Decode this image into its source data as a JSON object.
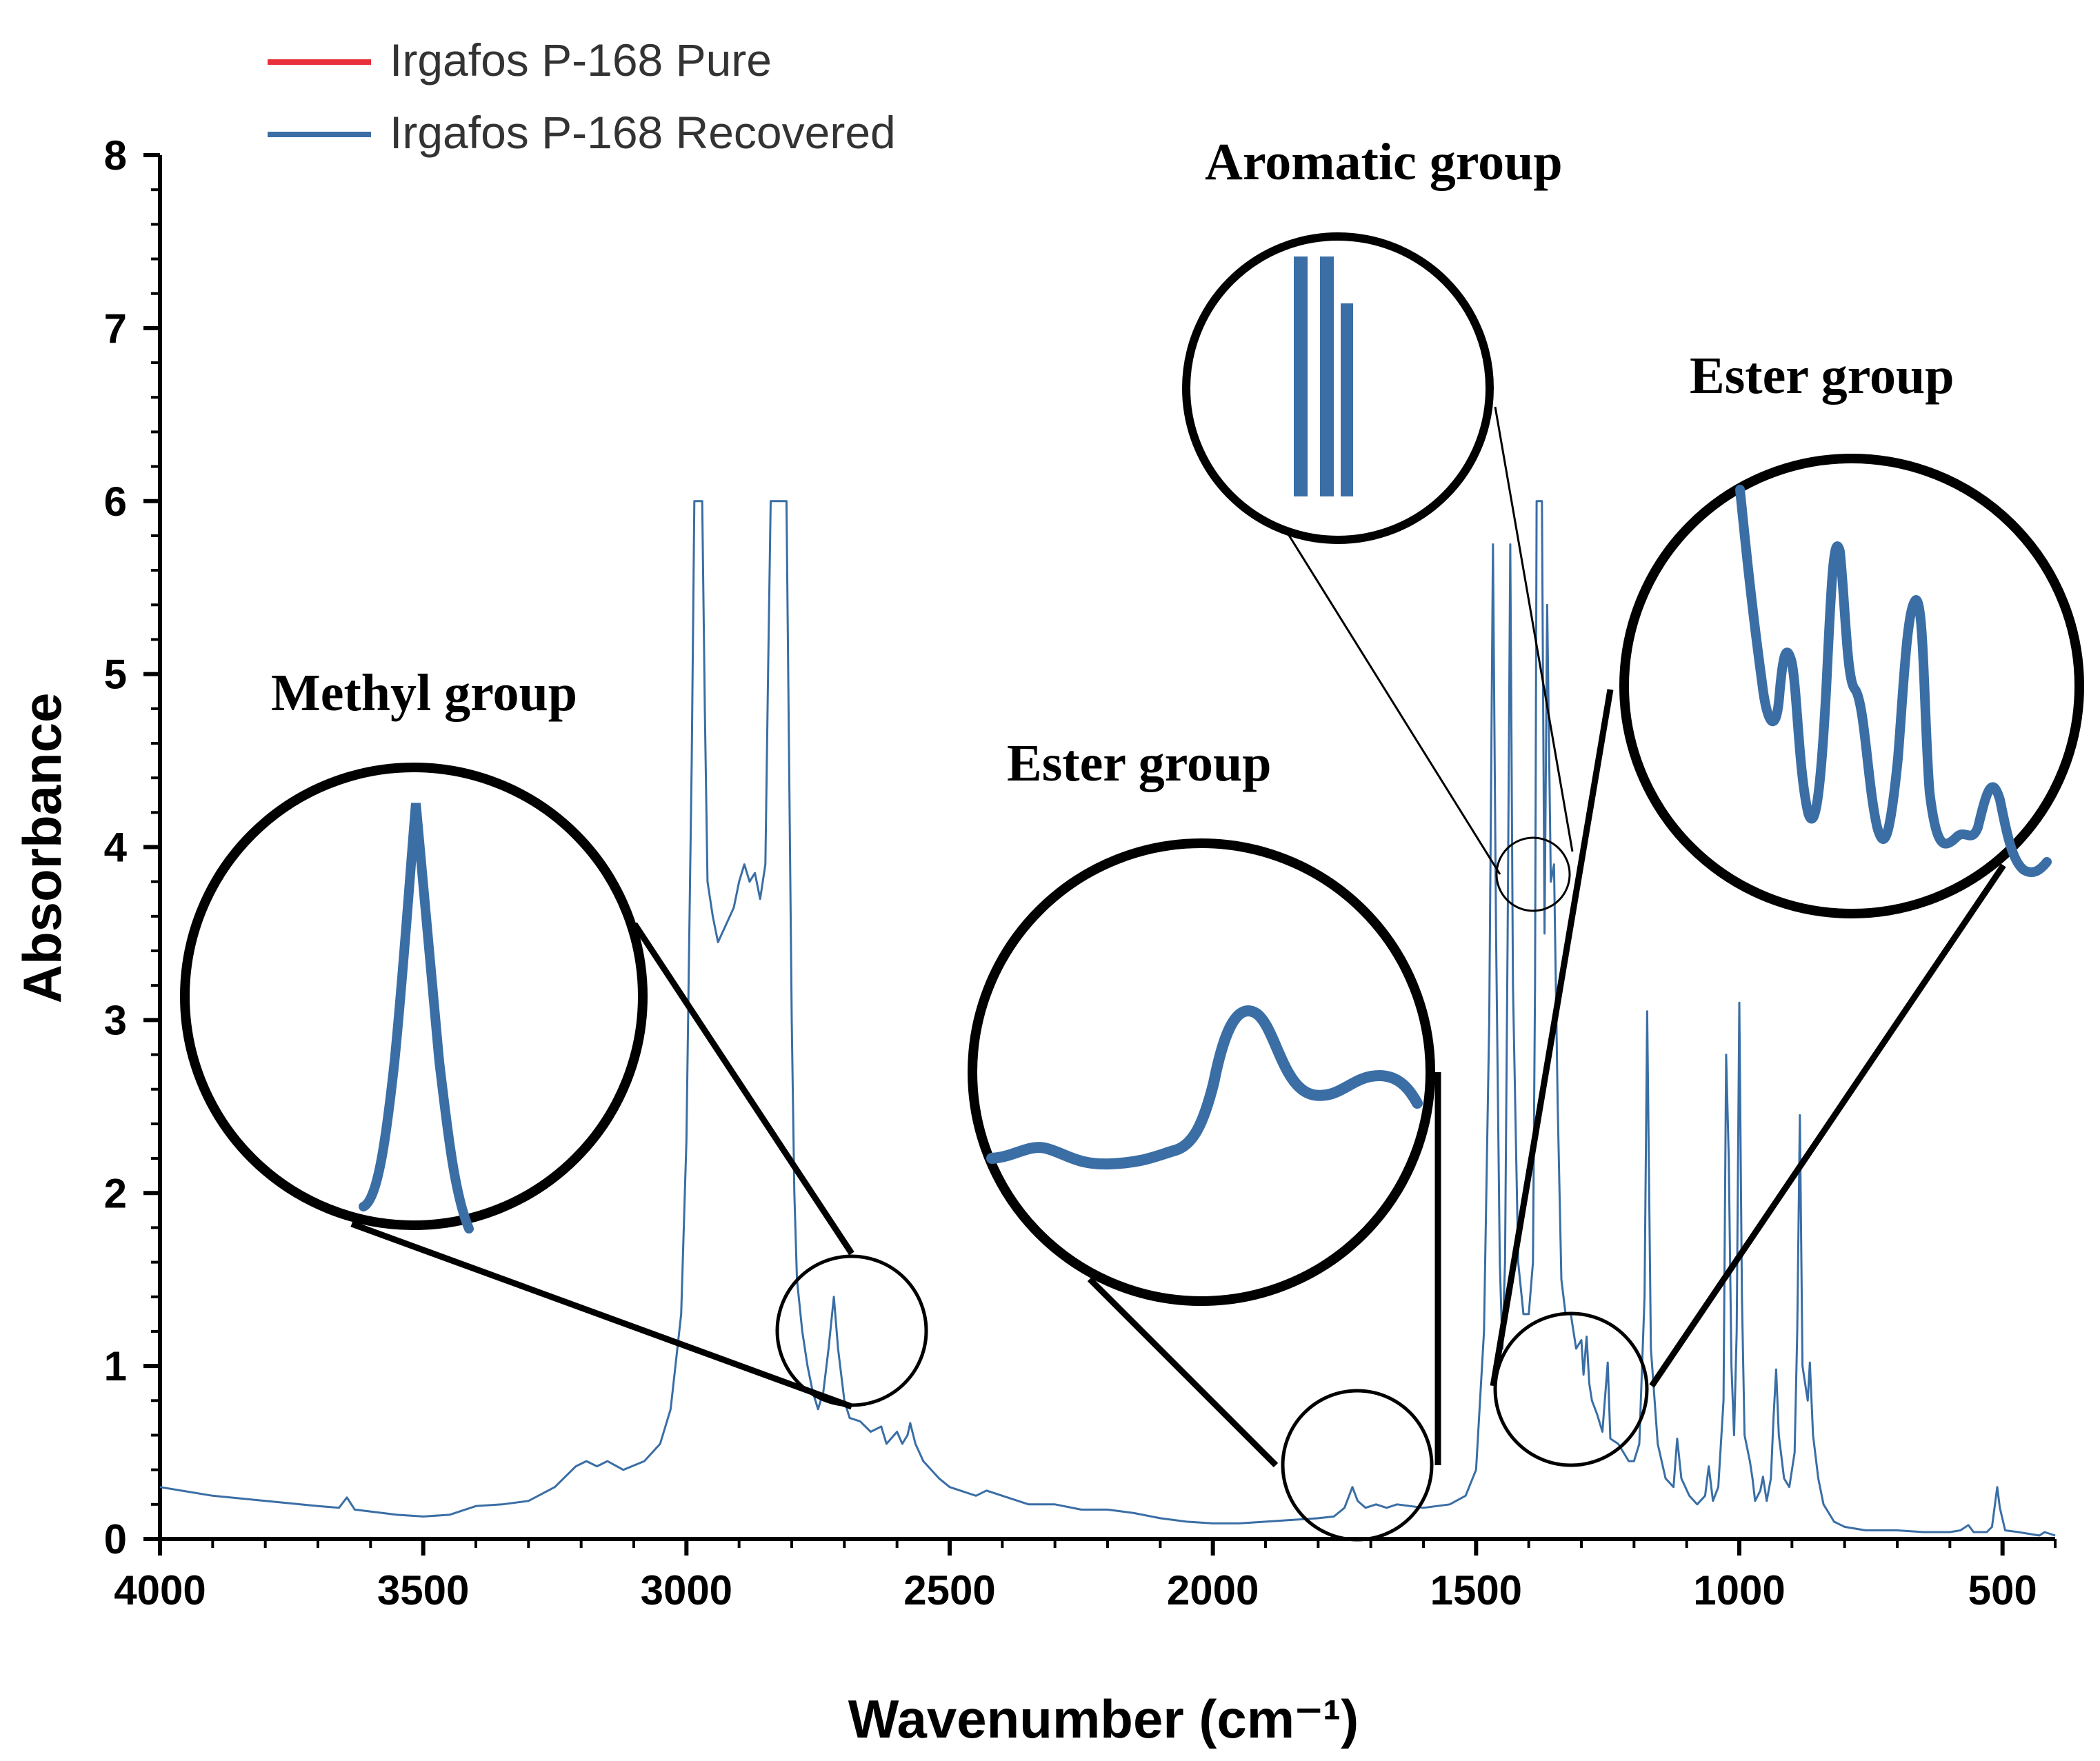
{
  "chart_data": {
    "type": "line",
    "title": "",
    "xlabel": "Wavenumber (cm⁻¹)",
    "ylabel": "Absorbance",
    "xlim": [
      4000,
      400
    ],
    "ylim": [
      0,
      8
    ],
    "x_ticks": [
      "4000",
      "3500",
      "3000",
      "2500",
      "2000",
      "1500",
      "1000",
      "500"
    ],
    "y_ticks": [
      "0",
      "1",
      "2",
      "3",
      "4",
      "5",
      "6",
      "7",
      "8"
    ],
    "legend": {
      "position": "top-left",
      "entries": [
        {
          "label": "Irgafos P-168 Pure",
          "color": "#e8303a"
        },
        {
          "label": "Irgafos P-168 Recovered",
          "color": "#3a6ea5"
        }
      ]
    },
    "series": [
      {
        "name": "Irgafos P-168 Recovered",
        "color": "#3a6ea5",
        "points": [
          [
            4000,
            0.3
          ],
          [
            3900,
            0.25
          ],
          [
            3800,
            0.22
          ],
          [
            3700,
            0.19
          ],
          [
            3660,
            0.18
          ],
          [
            3645,
            0.24
          ],
          [
            3630,
            0.17
          ],
          [
            3550,
            0.14
          ],
          [
            3500,
            0.13
          ],
          [
            3450,
            0.14
          ],
          [
            3400,
            0.19
          ],
          [
            3350,
            0.2
          ],
          [
            3300,
            0.22
          ],
          [
            3250,
            0.3
          ],
          [
            3210,
            0.42
          ],
          [
            3190,
            0.45
          ],
          [
            3170,
            0.42
          ],
          [
            3150,
            0.45
          ],
          [
            3120,
            0.4
          ],
          [
            3080,
            0.45
          ],
          [
            3050,
            0.55
          ],
          [
            3030,
            0.75
          ],
          [
            3010,
            1.3
          ],
          [
            3000,
            2.3
          ],
          [
            2990,
            4.5
          ],
          [
            2985,
            6.0
          ],
          [
            2970,
            6.0
          ],
          [
            2965,
            4.8
          ],
          [
            2960,
            3.8
          ],
          [
            2950,
            3.6
          ],
          [
            2940,
            3.45
          ],
          [
            2925,
            3.55
          ],
          [
            2910,
            3.65
          ],
          [
            2900,
            3.8
          ],
          [
            2890,
            3.9
          ],
          [
            2880,
            3.8
          ],
          [
            2870,
            3.85
          ],
          [
            2860,
            3.7
          ],
          [
            2850,
            3.9
          ],
          [
            2845,
            5.0
          ],
          [
            2840,
            6.0
          ],
          [
            2810,
            6.0
          ],
          [
            2805,
            4.5
          ],
          [
            2800,
            3.0
          ],
          [
            2795,
            2.0
          ],
          [
            2790,
            1.5
          ],
          [
            2780,
            1.2
          ],
          [
            2770,
            1.0
          ],
          [
            2760,
            0.85
          ],
          [
            2750,
            0.75
          ],
          [
            2740,
            0.85
          ],
          [
            2730,
            1.1
          ],
          [
            2720,
            1.4
          ],
          [
            2712,
            1.1
          ],
          [
            2700,
            0.8
          ],
          [
            2690,
            0.7
          ],
          [
            2670,
            0.68
          ],
          [
            2650,
            0.62
          ],
          [
            2630,
            0.65
          ],
          [
            2620,
            0.55
          ],
          [
            2600,
            0.62
          ],
          [
            2590,
            0.55
          ],
          [
            2580,
            0.6
          ],
          [
            2575,
            0.67
          ],
          [
            2565,
            0.55
          ],
          [
            2550,
            0.45
          ],
          [
            2520,
            0.35
          ],
          [
            2500,
            0.3
          ],
          [
            2450,
            0.25
          ],
          [
            2430,
            0.28
          ],
          [
            2400,
            0.25
          ],
          [
            2350,
            0.2
          ],
          [
            2300,
            0.2
          ],
          [
            2250,
            0.17
          ],
          [
            2200,
            0.17
          ],
          [
            2150,
            0.15
          ],
          [
            2100,
            0.12
          ],
          [
            2050,
            0.1
          ],
          [
            2000,
            0.09
          ],
          [
            1950,
            0.09
          ],
          [
            1900,
            0.1
          ],
          [
            1850,
            0.11
          ],
          [
            1800,
            0.12
          ],
          [
            1770,
            0.13
          ],
          [
            1750,
            0.18
          ],
          [
            1735,
            0.3
          ],
          [
            1725,
            0.22
          ],
          [
            1710,
            0.18
          ],
          [
            1690,
            0.2
          ],
          [
            1670,
            0.18
          ],
          [
            1650,
            0.2
          ],
          [
            1600,
            0.18
          ],
          [
            1550,
            0.2
          ],
          [
            1520,
            0.25
          ],
          [
            1500,
            0.4
          ],
          [
            1485,
            1.2
          ],
          [
            1475,
            3.0
          ],
          [
            1468,
            5.75
          ],
          [
            1462,
            3.5
          ],
          [
            1455,
            1.6
          ],
          [
            1450,
            1.1
          ],
          [
            1445,
            1.6
          ],
          [
            1440,
            3.5
          ],
          [
            1435,
            5.75
          ],
          [
            1430,
            3.2
          ],
          [
            1420,
            1.6
          ],
          [
            1410,
            1.3
          ],
          [
            1400,
            1.3
          ],
          [
            1392,
            1.6
          ],
          [
            1388,
            3.2
          ],
          [
            1385,
            6.0
          ],
          [
            1375,
            6.0
          ],
          [
            1370,
            3.5
          ],
          [
            1365,
            5.4
          ],
          [
            1358,
            3.8
          ],
          [
            1352,
            3.9
          ],
          [
            1345,
            2.5
          ],
          [
            1338,
            1.5
          ],
          [
            1330,
            1.3
          ],
          [
            1320,
            1.3
          ],
          [
            1310,
            1.1
          ],
          [
            1300,
            1.15
          ],
          [
            1296,
            0.95
          ],
          [
            1290,
            1.17
          ],
          [
            1285,
            0.9
          ],
          [
            1280,
            0.8
          ],
          [
            1270,
            0.72
          ],
          [
            1260,
            0.62
          ],
          [
            1250,
            1.02
          ],
          [
            1245,
            0.58
          ],
          [
            1230,
            0.55
          ],
          [
            1220,
            0.5
          ],
          [
            1210,
            0.45
          ],
          [
            1200,
            0.45
          ],
          [
            1190,
            0.55
          ],
          [
            1180,
            1.4
          ],
          [
            1175,
            3.05
          ],
          [
            1168,
            1.1
          ],
          [
            1155,
            0.55
          ],
          [
            1140,
            0.35
          ],
          [
            1125,
            0.3
          ],
          [
            1118,
            0.58
          ],
          [
            1110,
            0.35
          ],
          [
            1095,
            0.25
          ],
          [
            1080,
            0.2
          ],
          [
            1065,
            0.25
          ],
          [
            1058,
            0.42
          ],
          [
            1050,
            0.22
          ],
          [
            1040,
            0.3
          ],
          [
            1030,
            0.8
          ],
          [
            1025,
            2.8
          ],
          [
            1020,
            2.2
          ],
          [
            1015,
            1.0
          ],
          [
            1010,
            0.6
          ],
          [
            1005,
            1.2
          ],
          [
            1000,
            3.1
          ],
          [
            995,
            1.4
          ],
          [
            990,
            0.6
          ],
          [
            980,
            0.45
          ],
          [
            975,
            0.35
          ],
          [
            970,
            0.22
          ],
          [
            960,
            0.28
          ],
          [
            955,
            0.36
          ],
          [
            948,
            0.22
          ],
          [
            940,
            0.35
          ],
          [
            935,
            0.7
          ],
          [
            930,
            0.98
          ],
          [
            925,
            0.6
          ],
          [
            915,
            0.35
          ],
          [
            905,
            0.3
          ],
          [
            895,
            0.5
          ],
          [
            890,
            1.2
          ],
          [
            885,
            2.45
          ],
          [
            880,
            1.0
          ],
          [
            870,
            0.8
          ],
          [
            866,
            1.02
          ],
          [
            860,
            0.6
          ],
          [
            850,
            0.35
          ],
          [
            840,
            0.2
          ],
          [
            820,
            0.1
          ],
          [
            800,
            0.07
          ],
          [
            760,
            0.05
          ],
          [
            700,
            0.05
          ],
          [
            650,
            0.04
          ],
          [
            600,
            0.04
          ],
          [
            580,
            0.05
          ],
          [
            565,
            0.08
          ],
          [
            555,
            0.04
          ],
          [
            530,
            0.04
          ],
          [
            520,
            0.07
          ],
          [
            510,
            0.3
          ],
          [
            505,
            0.18
          ],
          [
            495,
            0.05
          ],
          [
            470,
            0.04
          ],
          [
            450,
            0.03
          ],
          [
            430,
            0.02
          ],
          [
            420,
            0.04
          ],
          [
            400,
            0.02
          ]
        ]
      }
    ],
    "annotations": [
      {
        "text": "Methyl group",
        "x_data": 2720
      },
      {
        "text": "Ester group",
        "x_data": 1720
      },
      {
        "text": "Aromatic group",
        "x_data": 1375
      },
      {
        "text": "Ester group",
        "x_data": 1250
      }
    ],
    "insets": [
      {
        "name": "methyl-inset",
        "source_x": [
          2800,
          2640
        ],
        "peak_x": 2720
      },
      {
        "name": "ester-inset-1",
        "source_x": [
          1800,
          1640
        ],
        "peak_x": 1735
      },
      {
        "name": "aromatic-inset",
        "source_x": [
          1420,
          1340
        ],
        "peak_x": 1375
      },
      {
        "name": "ester-inset-2",
        "source_x": [
          1340,
          1180
        ],
        "peak_x": 1290
      }
    ]
  }
}
